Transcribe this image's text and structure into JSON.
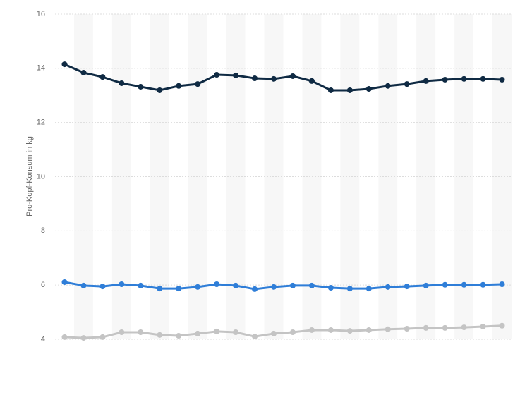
{
  "chart_data": {
    "type": "line",
    "y_label": "Pro-Kopf-Konsum in kg",
    "categories": [
      null,
      null,
      null,
      null,
      null,
      null,
      null,
      null,
      null,
      null,
      null,
      null,
      null,
      null,
      null,
      null,
      null,
      null,
      null,
      null,
      null,
      null,
      null,
      null
    ],
    "series": [
      {
        "color": "#0f2a43",
        "values": [
          14.15,
          13.84,
          13.68,
          13.45,
          13.32,
          13.19,
          13.35,
          13.42,
          13.76,
          13.74,
          13.63,
          13.61,
          13.71,
          13.53,
          13.19,
          13.19,
          13.24,
          13.35,
          13.42,
          13.53,
          13.58,
          13.61,
          13.61,
          13.58
        ]
      },
      {
        "color": "#2f7ed8",
        "values": [
          6.11,
          5.98,
          5.95,
          6.03,
          5.98,
          5.87,
          5.87,
          5.93,
          6.03,
          5.98,
          5.85,
          5.93,
          5.98,
          5.98,
          5.9,
          5.87,
          5.87,
          5.93,
          5.95,
          5.98,
          6.01,
          6.01,
          6.01,
          6.03
        ]
      },
      {
        "color": "#c4c4c4",
        "values": [
          4.08,
          4.05,
          4.08,
          4.26,
          4.26,
          4.16,
          4.13,
          4.21,
          4.29,
          4.26,
          4.1,
          4.21,
          4.26,
          4.34,
          4.34,
          4.31,
          4.34,
          4.37,
          4.39,
          4.42,
          4.42,
          4.44,
          4.47,
          4.5
        ]
      }
    ],
    "ylim": [
      4,
      16
    ],
    "yticks": [
      4,
      6,
      8,
      10,
      12,
      14,
      16
    ],
    "grid": true
  }
}
